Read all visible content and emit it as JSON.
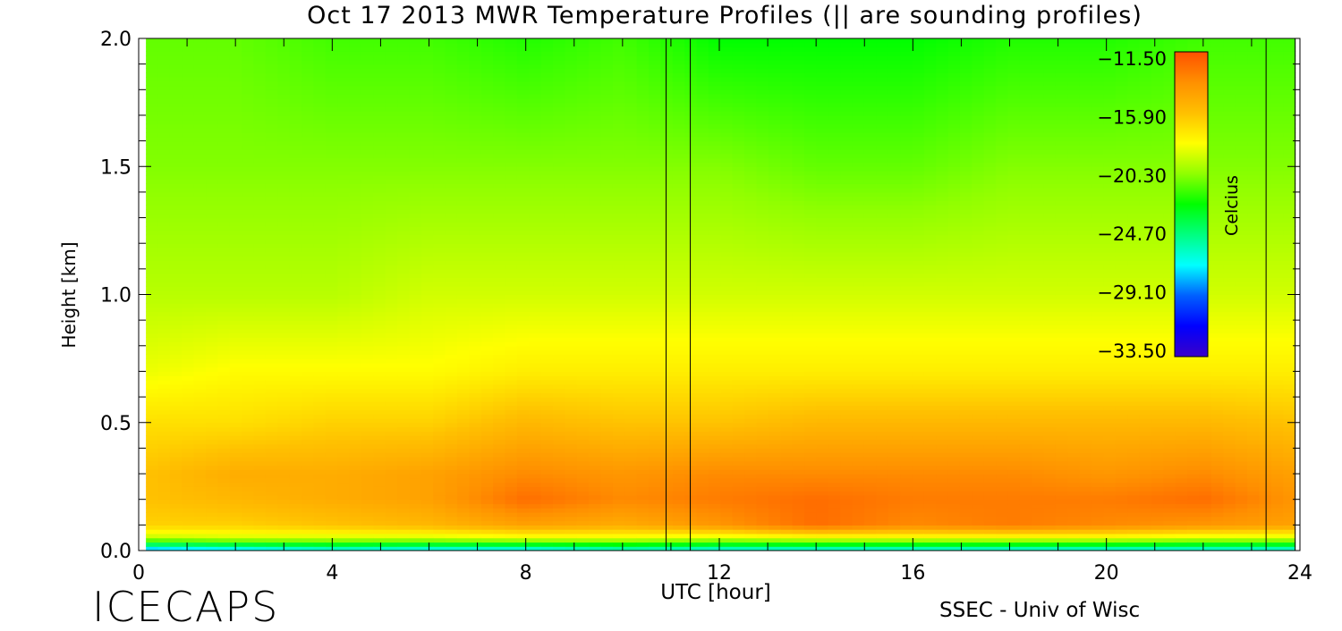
{
  "title": "Oct 17 2013 MWR Temperature Profiles (|| are sounding profiles)",
  "brand": "ICECAPS",
  "credit": "SSEC - Univ of Wisc",
  "chart_data": {
    "type": "heatmap",
    "title": "Oct 17 2013 MWR Temperature Profiles (|| are sounding profiles)",
    "xlabel": "UTC [hour]",
    "ylabel": "Height [km]",
    "xlim": [
      0,
      24
    ],
    "ylim": [
      0.0,
      2.0
    ],
    "x_ticks": [
      "0",
      "4",
      "8",
      "12",
      "16",
      "20",
      "24"
    ],
    "y_ticks": [
      "0.0",
      "0.5",
      "1.0",
      "1.5",
      "2.0"
    ],
    "colorbar": {
      "label": "Celcius",
      "ticks": [
        "-11.50",
        "-15.90",
        "-20.30",
        "-24.70",
        "-29.10",
        "-33.50"
      ],
      "range": [
        -33.5,
        -11.5
      ],
      "colors": [
        "#3a00c8",
        "#0000ff",
        "#0060ff",
        "#00ffff",
        "#00ff80",
        "#00ff00",
        "#90ff00",
        "#ffff00",
        "#ffc000",
        "#ff9000",
        "#ff5000"
      ]
    },
    "data_xrange": [
      0.15,
      23.9
    ],
    "sounding_profiles": [
      {
        "start": 10.9,
        "end": 11.4
      },
      {
        "start": 23.3,
        "end": 23.9
      }
    ],
    "hours": [
      0,
      2,
      4,
      6,
      8,
      10,
      12,
      14,
      16,
      18,
      20,
      22,
      24
    ],
    "heights_km": [
      0.0,
      0.05,
      0.1,
      0.2,
      0.3,
      0.5,
      0.7,
      1.0,
      1.5,
      2.0
    ],
    "temperature_c": [
      [
        -29.0,
        -28.0,
        -27.0,
        -27.5,
        -27.5,
        -26.5,
        -27.0,
        -27.0,
        -27.0,
        -27.0,
        -27.0,
        -27.0,
        -27.0
      ],
      [
        -19.5,
        -19.0,
        -19.0,
        -19.0,
        -18.5,
        -18.5,
        -19.0,
        -18.5,
        -18.5,
        -18.5,
        -18.5,
        -19.0,
        -19.0
      ],
      [
        -16.5,
        -16.5,
        -16.0,
        -15.5,
        -14.5,
        -15.0,
        -14.0,
        -12.5,
        -13.5,
        -13.0,
        -13.5,
        -14.0,
        -14.5
      ],
      [
        -16.0,
        -15.5,
        -15.0,
        -14.5,
        -12.5,
        -13.5,
        -13.0,
        -12.5,
        -13.0,
        -13.0,
        -13.0,
        -12.5,
        -14.0
      ],
      [
        -16.0,
        -15.0,
        -15.0,
        -14.5,
        -13.5,
        -14.0,
        -13.5,
        -13.5,
        -13.5,
        -13.5,
        -14.0,
        -13.5,
        -14.5
      ],
      [
        -17.0,
        -17.0,
        -16.5,
        -16.5,
        -15.5,
        -16.0,
        -16.0,
        -15.5,
        -15.5,
        -15.5,
        -15.5,
        -15.5,
        -16.0
      ],
      [
        -18.5,
        -18.0,
        -18.0,
        -18.0,
        -17.5,
        -17.5,
        -17.5,
        -17.5,
        -17.5,
        -17.5,
        -17.5,
        -17.5,
        -17.5
      ],
      [
        -19.5,
        -19.5,
        -19.5,
        -19.0,
        -19.0,
        -19.0,
        -19.0,
        -19.0,
        -19.0,
        -19.0,
        -19.0,
        -19.0,
        -19.0
      ],
      [
        -20.5,
        -20.5,
        -20.5,
        -20.5,
        -20.5,
        -20.5,
        -20.5,
        -21.0,
        -21.0,
        -20.5,
        -20.5,
        -20.5,
        -20.5
      ],
      [
        -21.0,
        -21.0,
        -21.5,
        -21.5,
        -22.0,
        -21.5,
        -22.5,
        -22.5,
        -22.5,
        -22.0,
        -22.0,
        -21.5,
        -21.5
      ]
    ]
  }
}
